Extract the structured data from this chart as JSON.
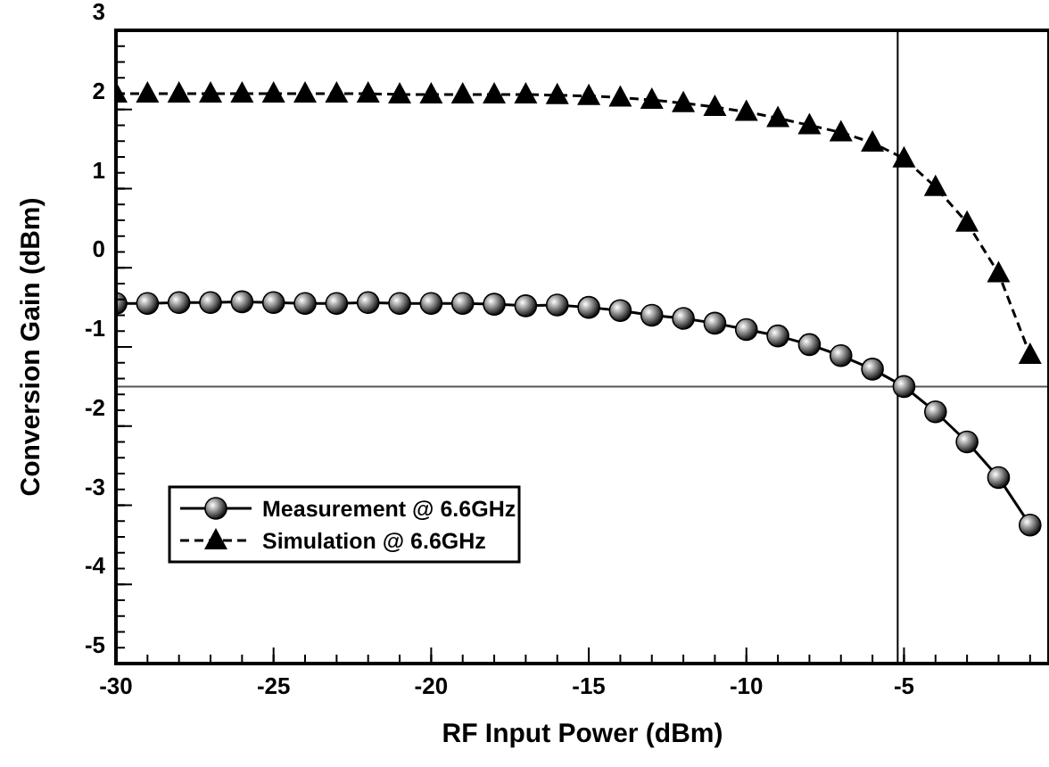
{
  "chart_data": {
    "type": "line",
    "xlabel": "RF Input Power (dBm)",
    "ylabel": "Conversion Gain (dBm)",
    "x": [
      -30,
      -29,
      -28,
      -27,
      -26,
      -25,
      -24,
      -23,
      -22,
      -21,
      -20,
      -19,
      -18,
      -17,
      -16,
      -15,
      -14,
      -13,
      -12,
      -11,
      -10,
      -9,
      -8,
      -7,
      -6,
      -5,
      -4,
      -3,
      -2,
      -1
    ],
    "series": [
      {
        "name": "Measurement @ 6.6GHz",
        "color": "#000000",
        "marker": "circle",
        "line_style": "solid",
        "values": [
          -0.45,
          -0.45,
          -0.44,
          -0.44,
          -0.43,
          -0.44,
          -0.45,
          -0.45,
          -0.44,
          -0.45,
          -0.45,
          -0.45,
          -0.46,
          -0.48,
          -0.47,
          -0.5,
          -0.54,
          -0.6,
          -0.64,
          -0.7,
          -0.78,
          -0.86,
          -0.97,
          -1.11,
          -1.28,
          -1.5,
          -1.82,
          -2.2,
          -2.65,
          -3.25
        ]
      },
      {
        "name": "Simulation @ 6.6GHz",
        "color": "#000000",
        "marker": "triangle",
        "line_style": "dashed",
        "values": [
          2.2,
          2.2,
          2.2,
          2.2,
          2.2,
          2.2,
          2.2,
          2.2,
          2.2,
          2.19,
          2.19,
          2.19,
          2.19,
          2.19,
          2.18,
          2.17,
          2.15,
          2.12,
          2.08,
          2.03,
          1.97,
          1.89,
          1.8,
          1.71,
          1.58,
          1.38,
          1.02,
          0.57,
          -0.07,
          -1.1
        ]
      }
    ],
    "xlim": [
      -30,
      -0.4
    ],
    "ylim": [
      -5,
      3
    ],
    "xticks": [
      -30,
      -25,
      -20,
      -15,
      -10,
      -5
    ],
    "yticks": [
      -5,
      -4,
      -3,
      -2,
      -1,
      0,
      1,
      2,
      3
    ],
    "ref_lines": [
      {
        "axis": "y",
        "value": -1.5,
        "color": "#555555"
      },
      {
        "axis": "x",
        "value": -5.2,
        "color": "#000000"
      }
    ],
    "grid": false,
    "legend": "left"
  }
}
